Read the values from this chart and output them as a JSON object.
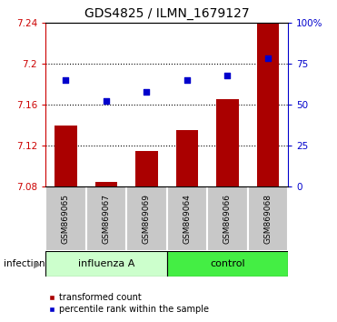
{
  "title": "GDS4825 / ILMN_1679127",
  "samples": [
    "GSM869065",
    "GSM869067",
    "GSM869069",
    "GSM869064",
    "GSM869066",
    "GSM869068"
  ],
  "group_labels": [
    "influenza A",
    "control"
  ],
  "bar_color": "#aa0000",
  "dot_color": "#0000cc",
  "bar_bottom": 7.08,
  "bar_values": [
    7.14,
    7.085,
    7.115,
    7.135,
    7.165,
    7.24
  ],
  "dot_values": [
    65,
    52,
    58,
    65,
    68,
    78
  ],
  "ylim_left": [
    7.08,
    7.24
  ],
  "ylim_right": [
    0,
    100
  ],
  "yticks_left": [
    7.08,
    7.12,
    7.16,
    7.2,
    7.24
  ],
  "yticks_right": [
    0,
    25,
    50,
    75,
    100
  ],
  "ytick_labels_right": [
    "0",
    "25",
    "50",
    "75",
    "100%"
  ],
  "hlines": [
    7.12,
    7.16,
    7.2
  ],
  "infection_label": "infection",
  "legend_bar_label": "transformed count",
  "legend_dot_label": "percentile rank within the sample",
  "sample_box_color": "#c8c8c8",
  "influenza_color": "#ccffcc",
  "control_color": "#44ee44",
  "plot_bg": "#ffffff"
}
